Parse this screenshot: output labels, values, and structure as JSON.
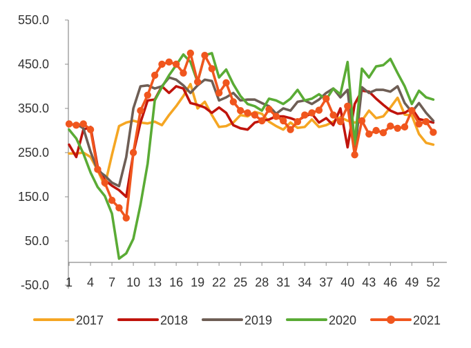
{
  "chart_data": {
    "type": "line",
    "title": "",
    "xlabel": "",
    "ylabel": "",
    "ylim": [
      -50,
      550
    ],
    "yticks": [
      "550.0",
      "450.0",
      "350.0",
      "250.0",
      "150.0",
      "50.0",
      "-50.0"
    ],
    "yticks_values": [
      550,
      450,
      350,
      250,
      150,
      50,
      -50
    ],
    "xlim": [
      1,
      53
    ],
    "xticks": [
      "1",
      "4",
      "7",
      "10",
      "13",
      "16",
      "19",
      "22",
      "25",
      "28",
      "31",
      "34",
      "37",
      "40",
      "43",
      "46",
      "49",
      "52"
    ],
    "xticks_values": [
      1,
      4,
      7,
      10,
      13,
      16,
      19,
      22,
      25,
      28,
      31,
      34,
      37,
      40,
      43,
      46,
      49,
      52
    ],
    "grid": false,
    "legend_position": "bottom",
    "series": [
      {
        "name": "2017",
        "color": "#F5A623",
        "markers": false,
        "x": [
          1,
          2,
          3,
          4,
          5,
          6,
          7,
          8,
          9,
          10,
          11,
          12,
          13,
          14,
          15,
          16,
          17,
          18,
          19,
          20,
          21,
          22,
          23,
          24,
          25,
          26,
          27,
          28,
          29,
          30,
          31,
          32,
          33,
          34,
          35,
          36,
          37,
          38,
          39,
          40,
          41,
          42,
          43,
          44,
          45,
          46,
          47,
          48,
          49,
          50,
          51,
          52
        ],
        "y": [
          248,
          248,
          250,
          240,
          210,
          175,
          245,
          310,
          318,
          322,
          318,
          316,
          320,
          312,
          335,
          355,
          378,
          405,
          350,
          365,
          335,
          308,
          310,
          318,
          335,
          332,
          342,
          338,
          320,
          310,
          302,
          318,
          306,
          308,
          325,
          308,
          312,
          320,
          330,
          322,
          318,
          322,
          345,
          328,
          332,
          352,
          374,
          336,
          334,
          292,
          272,
          268
        ]
      },
      {
        "name": "2018",
        "color": "#C0140C",
        "markers": false,
        "x": [
          1,
          2,
          3,
          4,
          5,
          6,
          7,
          8,
          9,
          10,
          11,
          12,
          13,
          14,
          15,
          16,
          17,
          18,
          19,
          20,
          21,
          22,
          23,
          24,
          25,
          26,
          27,
          28,
          29,
          30,
          31,
          32,
          33,
          34,
          35,
          36,
          37,
          38,
          39,
          40,
          41,
          42,
          43,
          44,
          45,
          46,
          47,
          48,
          49,
          50,
          51,
          52
        ],
        "y": [
          268,
          240,
          302,
          308,
          218,
          188,
          175,
          165,
          150,
          248,
          318,
          368,
          370,
          400,
          385,
          400,
          395,
          362,
          358,
          352,
          340,
          352,
          340,
          312,
          305,
          302,
          318,
          322,
          325,
          332,
          332,
          328,
          322,
          332,
          338,
          318,
          328,
          312,
          350,
          262,
          360,
          390,
          388,
          372,
          358,
          345,
          338,
          340,
          350,
          326,
          322,
          318
        ]
      },
      {
        "name": "2019",
        "color": "#6E5E55",
        "markers": false,
        "x": [
          1,
          2,
          3,
          4,
          5,
          6,
          7,
          8,
          9,
          10,
          11,
          12,
          13,
          14,
          15,
          16,
          17,
          18,
          19,
          20,
          21,
          22,
          23,
          24,
          25,
          26,
          27,
          28,
          29,
          30,
          31,
          32,
          33,
          34,
          35,
          36,
          37,
          38,
          39,
          40,
          41,
          42,
          43,
          44,
          45,
          46,
          47,
          48,
          49,
          50,
          51,
          52
        ],
        "y": [
          312,
          315,
          305,
          252,
          210,
          198,
          182,
          174,
          240,
          350,
          400,
          402,
          395,
          400,
          420,
          415,
          402,
          385,
          402,
          415,
          412,
          368,
          375,
          385,
          368,
          370,
          370,
          362,
          355,
          338,
          350,
          345,
          365,
          368,
          360,
          370,
          385,
          395,
          375,
          392,
          248,
          398,
          385,
          392,
          392,
          388,
          400,
          362,
          342,
          362,
          340,
          322
        ]
      },
      {
        "name": "2020",
        "color": "#5AAB35",
        "markers": false,
        "x": [
          1,
          2,
          3,
          4,
          5,
          6,
          7,
          8,
          9,
          10,
          11,
          12,
          13,
          14,
          15,
          16,
          17,
          18,
          19,
          20,
          21,
          22,
          23,
          24,
          25,
          26,
          27,
          28,
          29,
          30,
          31,
          32,
          33,
          34,
          35,
          36,
          37,
          38,
          39,
          40,
          41,
          42,
          43,
          44,
          45,
          46,
          47,
          48,
          49,
          50,
          51,
          52
        ],
        "y": [
          302,
          282,
          248,
          205,
          172,
          152,
          112,
          10,
          22,
          55,
          132,
          225,
          368,
          398,
          425,
          448,
          472,
          455,
          410,
          470,
          475,
          420,
          438,
          405,
          378,
          360,
          355,
          345,
          372,
          368,
          360,
          372,
          392,
          368,
          372,
          382,
          370,
          395,
          382,
          455,
          268,
          440,
          420,
          445,
          448,
          462,
          430,
          400,
          360,
          390,
          375,
          370
        ]
      },
      {
        "name": "2021",
        "color": "#F0561E",
        "markers": true,
        "x": [
          1,
          2,
          3,
          4,
          5,
          6,
          7,
          8,
          9,
          10,
          11,
          12,
          13,
          14,
          15,
          16,
          17,
          18,
          19,
          20,
          21,
          22,
          23,
          24,
          25,
          26,
          27,
          28,
          29,
          30,
          31,
          32,
          33,
          34,
          35,
          36,
          37,
          38,
          39,
          40,
          41,
          42,
          43,
          44,
          45,
          46,
          47,
          48,
          49,
          50,
          51,
          52
        ],
        "y": [
          315,
          312,
          315,
          302,
          212,
          182,
          142,
          125,
          102,
          250,
          345,
          380,
          425,
          450,
          455,
          450,
          430,
          475,
          410,
          470,
          440,
          385,
          408,
          365,
          345,
          340,
          335,
          322,
          348,
          332,
          322,
          302,
          320,
          335,
          340,
          346,
          372,
          335,
          320,
          355,
          245,
          322,
          292,
          300,
          295,
          310,
          305,
          308,
          345,
          315,
          320,
          296
        ]
      }
    ]
  }
}
